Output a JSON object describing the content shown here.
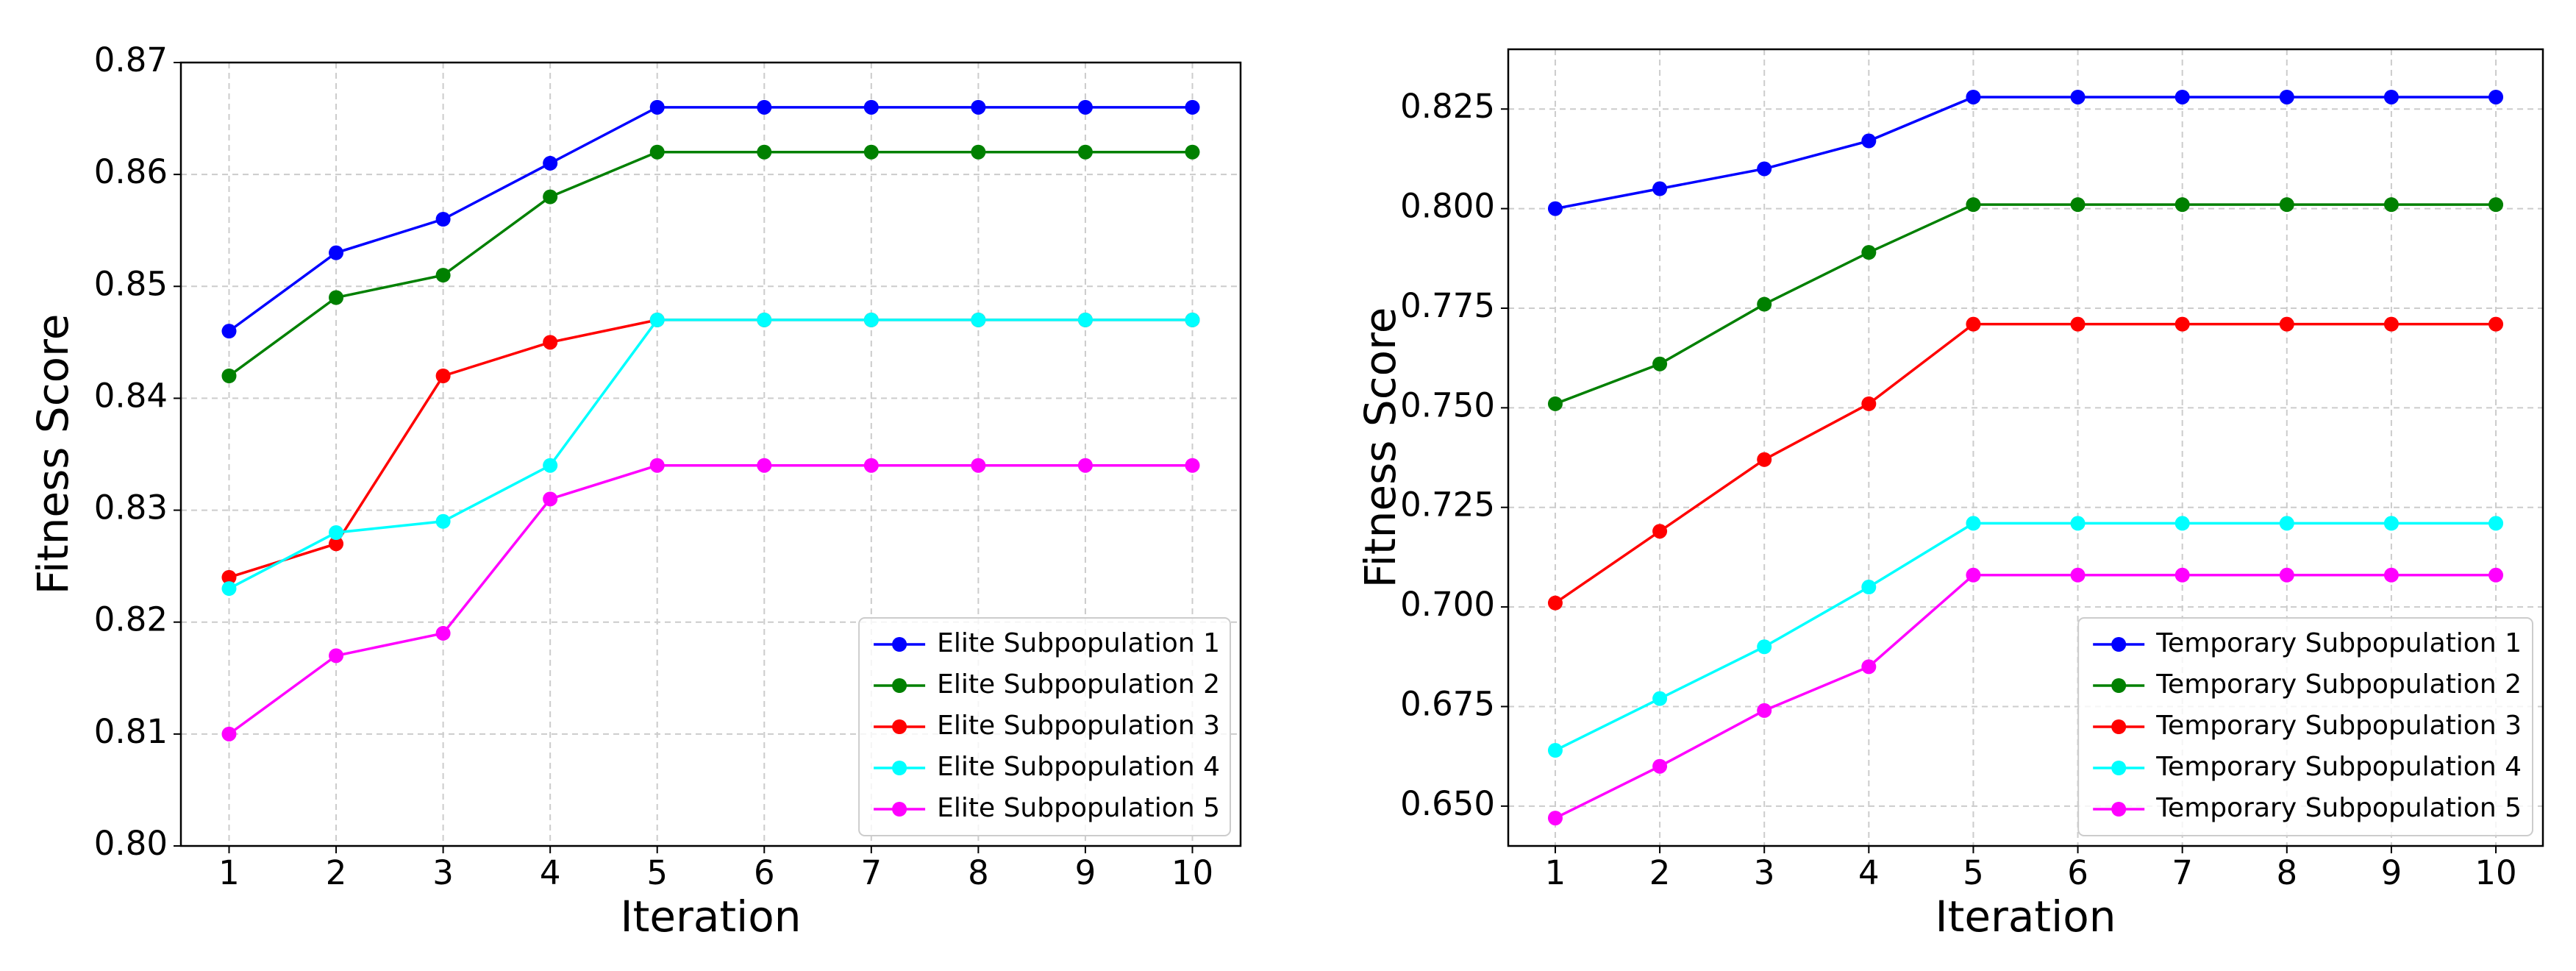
{
  "chart_data": [
    {
      "type": "line",
      "xlabel": "Iteration",
      "ylabel": "Fitness Score",
      "x": [
        1,
        2,
        3,
        4,
        5,
        6,
        7,
        8,
        9,
        10
      ],
      "xlim": [
        0.55,
        10.45
      ],
      "xticks": [
        1,
        2,
        3,
        4,
        5,
        6,
        7,
        8,
        9,
        10
      ],
      "ylim": [
        0.8,
        0.87
      ],
      "yticks": [
        {
          "value": 0.8,
          "label": "0.80"
        },
        0.81,
        0.82,
        0.83,
        0.84,
        0.85,
        0.86,
        0.87
      ],
      "grid": true,
      "legend": "lower right",
      "series": [
        {
          "name": "Elite Subpopulation 1",
          "color": "#0000ff",
          "values": [
            0.846,
            0.853,
            0.856,
            0.861,
            0.866,
            0.866,
            0.866,
            0.866,
            0.866,
            0.866
          ]
        },
        {
          "name": "Elite Subpopulation 2",
          "color": "#008000",
          "values": [
            0.842,
            0.849,
            0.851,
            0.858,
            0.862,
            0.862,
            0.862,
            0.862,
            0.862,
            0.862
          ]
        },
        {
          "name": "Elite Subpopulation 3",
          "color": "#ff0000",
          "values": [
            0.824,
            0.827,
            0.842,
            0.845,
            0.847,
            0.847,
            0.847,
            0.847,
            0.847,
            0.847
          ]
        },
        {
          "name": "Elite Subpopulation 4",
          "color": "#00ffff",
          "values": [
            0.823,
            0.828,
            0.829,
            0.834,
            0.847,
            0.847,
            0.847,
            0.847,
            0.847,
            0.847
          ]
        },
        {
          "name": "Elite Subpopulation 5",
          "color": "#ff00ff",
          "values": [
            0.81,
            0.817,
            0.819,
            0.831,
            0.834,
            0.834,
            0.834,
            0.834,
            0.834,
            0.834
          ]
        }
      ]
    },
    {
      "type": "line",
      "xlabel": "Iteration",
      "ylabel": "Fitness Score",
      "x": [
        1,
        2,
        3,
        4,
        5,
        6,
        7,
        8,
        9,
        10
      ],
      "xlim": [
        0.55,
        10.45
      ],
      "xticks": [
        1,
        2,
        3,
        4,
        5,
        6,
        7,
        8,
        9,
        10
      ],
      "ylim": [
        0.64,
        0.84
      ],
      "yticks": [
        {
          "value": 0.65,
          "label": "0.650"
        },
        0.675,
        {
          "value": 0.7,
          "label": "0.700"
        },
        0.725,
        {
          "value": 0.75,
          "label": "0.750"
        },
        0.775,
        {
          "value": 0.8,
          "label": "0.800"
        },
        0.825
      ],
      "grid": true,
      "legend": "lower right",
      "series": [
        {
          "name": "Temporary Subpopulation 1",
          "color": "#0000ff",
          "values": [
            0.8,
            0.805,
            0.81,
            0.817,
            0.828,
            0.828,
            0.828,
            0.828,
            0.828,
            0.828
          ]
        },
        {
          "name": "Temporary Subpopulation 2",
          "color": "#008000",
          "values": [
            0.751,
            0.761,
            0.776,
            0.789,
            0.801,
            0.801,
            0.801,
            0.801,
            0.801,
            0.801
          ]
        },
        {
          "name": "Temporary Subpopulation 3",
          "color": "#ff0000",
          "values": [
            0.701,
            0.719,
            0.737,
            0.751,
            0.771,
            0.771,
            0.771,
            0.771,
            0.771,
            0.771
          ]
        },
        {
          "name": "Temporary Subpopulation 4",
          "color": "#00ffff",
          "values": [
            0.664,
            0.677,
            0.69,
            0.705,
            0.721,
            0.721,
            0.721,
            0.721,
            0.721,
            0.721
          ]
        },
        {
          "name": "Temporary Subpopulation 5",
          "color": "#ff00ff",
          "values": [
            0.647,
            0.66,
            0.674,
            0.685,
            0.708,
            0.708,
            0.708,
            0.708,
            0.708,
            0.708
          ]
        }
      ]
    }
  ]
}
